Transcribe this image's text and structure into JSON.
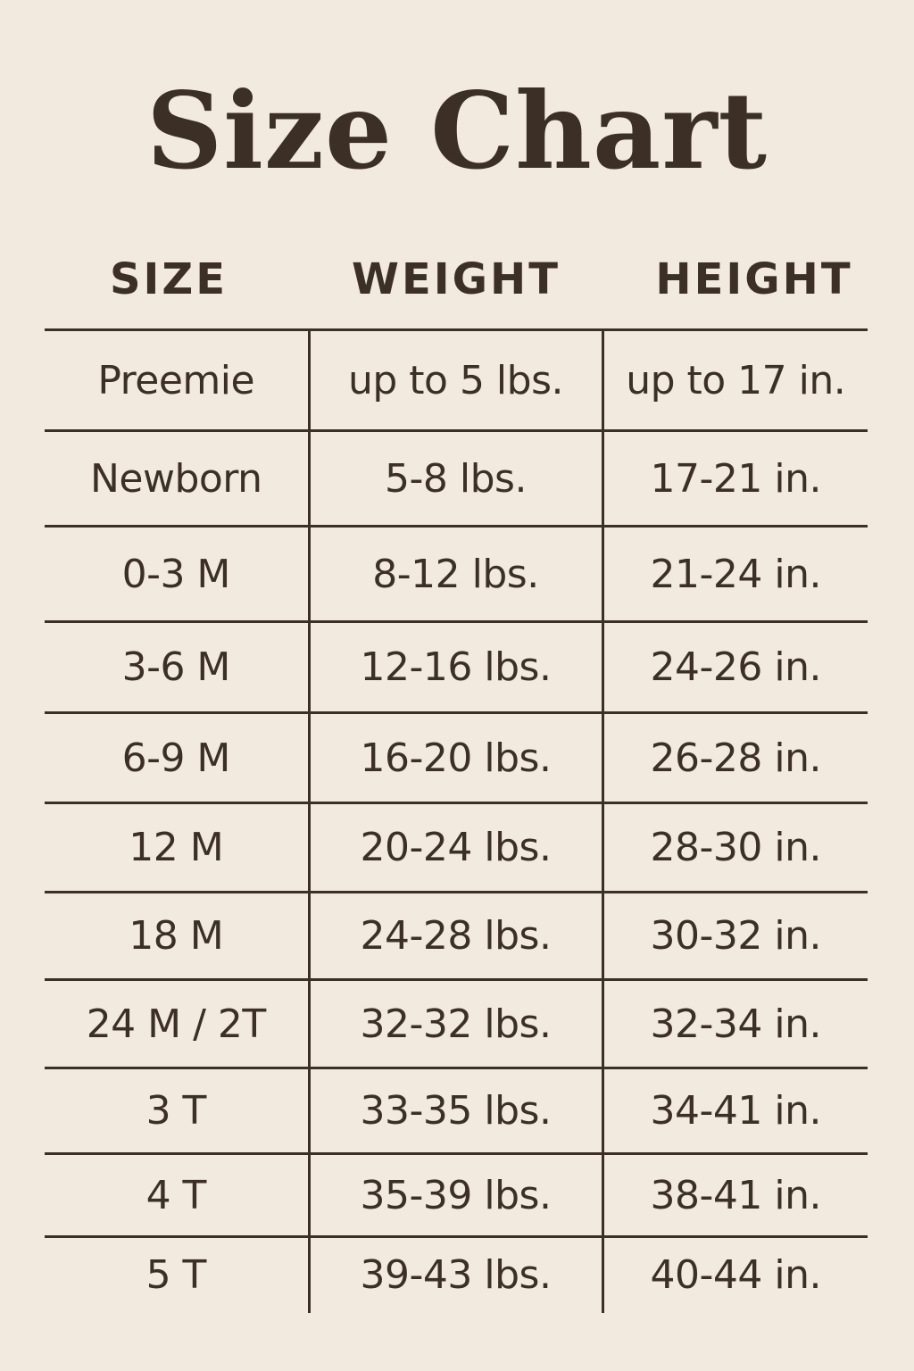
{
  "title": "Size Chart",
  "colors": {
    "background": "#f2eadf",
    "text": "#3b2f26"
  },
  "headers": [
    "SIZE",
    "WEIGHT",
    "HEIGHT"
  ],
  "rows": [
    [
      "Preemie",
      "up to 5 lbs.",
      "up to 17 in."
    ],
    [
      "Newborn",
      "5-8 lbs.",
      "17-21 in."
    ],
    [
      "0-3 M",
      "8-12 lbs.",
      "21-24 in."
    ],
    [
      "3-6 M",
      "12-16 lbs.",
      "24-26 in."
    ],
    [
      "6-9 M",
      "16-20 lbs.",
      "26-28 in."
    ],
    [
      "12 M",
      "20-24 lbs.",
      "28-30 in."
    ],
    [
      "18 M",
      "24-28 lbs.",
      "30-32 in."
    ],
    [
      "24 M / 2T",
      "32-32 lbs.",
      "32-34 in."
    ],
    [
      "3 T",
      "33-35 lbs.",
      "34-41 in."
    ],
    [
      "4 T",
      "35-39 lbs.",
      "38-41 in."
    ],
    [
      "5 T",
      "39-43 lbs.",
      "40-44 in."
    ]
  ]
}
